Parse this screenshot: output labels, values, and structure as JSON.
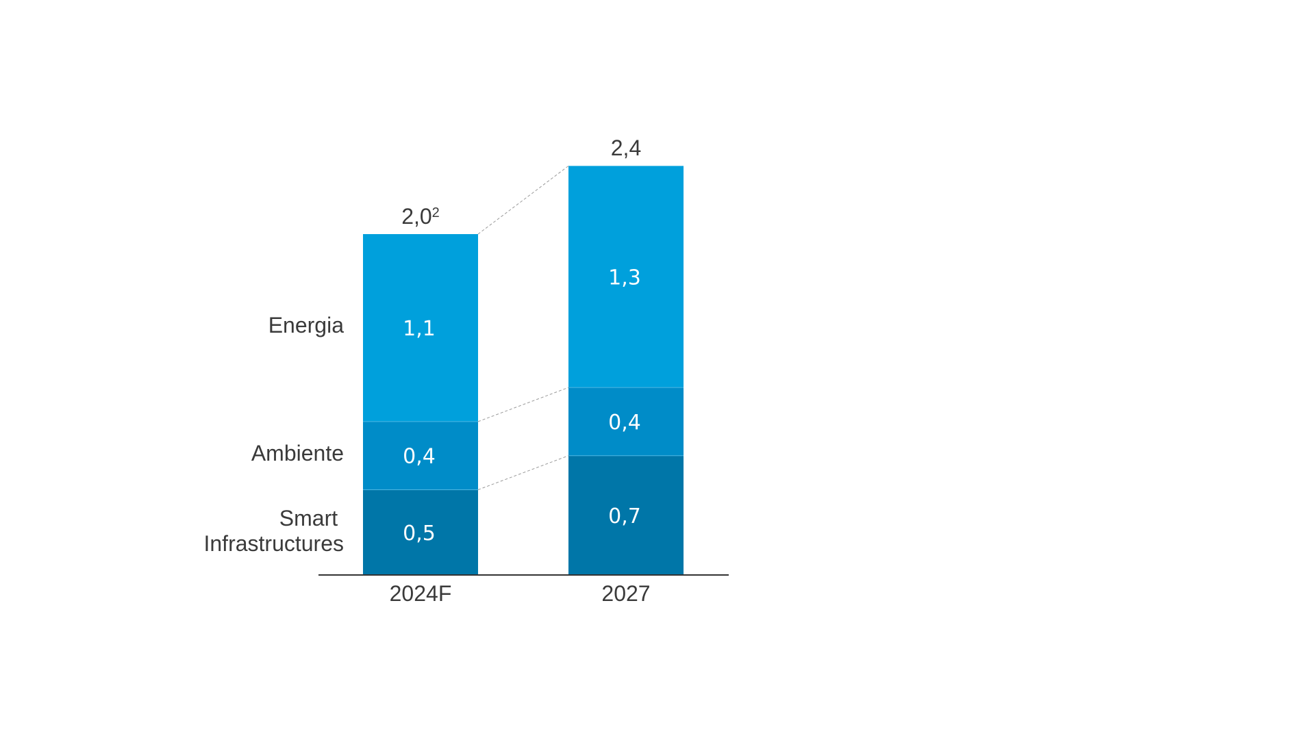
{
  "chart_data": {
    "type": "bar",
    "stacked": true,
    "categories": [
      "2024F",
      "2027"
    ],
    "series": [
      {
        "name": "Smart\nInfrastructures",
        "values": [
          0.5,
          0.7
        ],
        "labels": [
          "0,5",
          "0,7"
        ],
        "color": "#0076a8"
      },
      {
        "name": "Ambiente",
        "values": [
          0.4,
          0.4
        ],
        "labels": [
          "0,4",
          "0,4"
        ],
        "color": "#008cc8"
      },
      {
        "name": "Energia",
        "values": [
          1.1,
          1.3
        ],
        "labels": [
          "1,1",
          "1,3"
        ],
        "color": "#00a0dc"
      }
    ],
    "totals": [
      {
        "value": 2.0,
        "label": "2,0",
        "footnote": "2"
      },
      {
        "value": 2.4,
        "label": "2,4",
        "footnote": ""
      }
    ],
    "series_label_lines": [
      [
        "Smart",
        "Infrastructures"
      ],
      [
        "Ambiente"
      ],
      [
        "Energia"
      ]
    ],
    "title": "",
    "xlabel": "",
    "ylabel": "",
    "ylim": [
      0,
      2.4
    ],
    "grid": false,
    "legend": "left, inline labels",
    "connector_lines": true
  }
}
